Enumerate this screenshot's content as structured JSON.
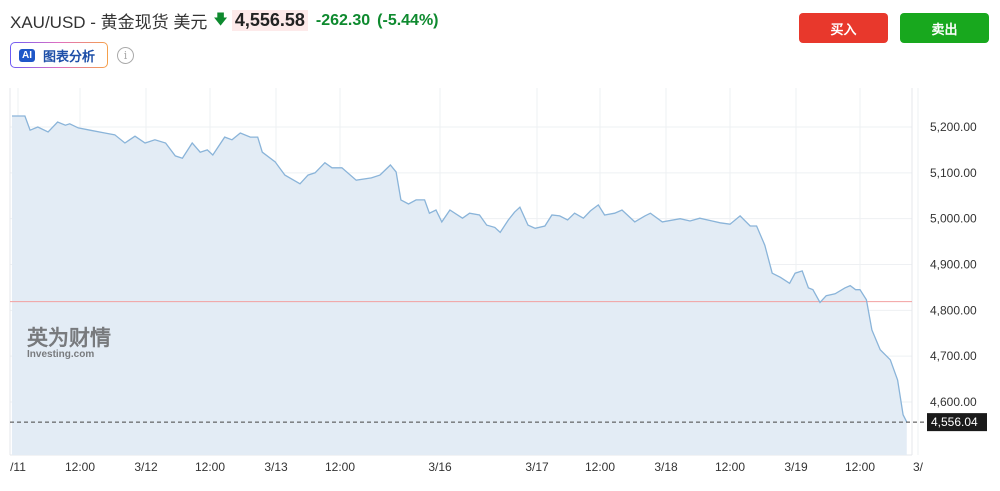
{
  "header": {
    "title": "XAU/USD - 黄金现货 美元",
    "direction_icon": "arrow-down-icon",
    "price": "4,556.58",
    "change": "-262.30",
    "change_pct": "(-5.44%)"
  },
  "ai_button": {
    "badge": "AI",
    "label": "图表分析"
  },
  "info_icon": "i",
  "buttons": {
    "buy": "买入",
    "sell": "卖出"
  },
  "colors": {
    "buy": "#e8382c",
    "sell": "#18a81e",
    "down": "#0e8a2f",
    "line": "#8ab4d9",
    "fill": "#e3ecf5",
    "prev_close": "#f2a0a0"
  },
  "watermark": {
    "cn": "英为财情",
    "en": "Investing.com"
  },
  "chart_data": {
    "type": "area",
    "ylim": [
      4520,
      5260
    ],
    "yticks": [
      {
        "v": 5200,
        "label": "5,200.00"
      },
      {
        "v": 5100,
        "label": "5,100.00"
      },
      {
        "v": 5000,
        "label": "5,000.00"
      },
      {
        "v": 4900,
        "label": "4,900.00"
      },
      {
        "v": 4800,
        "label": "4,800.00"
      },
      {
        "v": 4700,
        "label": "4,700.00"
      },
      {
        "v": 4600,
        "label": "4,600.00"
      }
    ],
    "xticks": [
      "/11",
      "12:00",
      "3/12",
      "12:00",
      "3/13",
      "12:00",
      "3/16",
      "3/17",
      "12:00",
      "3/18",
      "12:00",
      "3/19",
      "12:00",
      "3/"
    ],
    "reference_line": 4818.88,
    "current": {
      "value": 4556.04,
      "label": "4,556.04"
    },
    "points": [
      [
        "03-10 22:50",
        5224
      ],
      [
        "03-11 01:20",
        5224
      ],
      [
        "03-11 02:20",
        5193
      ],
      [
        "03-11 03:50",
        5200
      ],
      [
        "03-11 05:50",
        5189
      ],
      [
        "03-11 07:40",
        5211
      ],
      [
        "03-11 09:10",
        5204
      ],
      [
        "03-11 10:00",
        5207
      ],
      [
        "03-11 11:40",
        5198
      ],
      [
        "03-11 13:50",
        5193
      ],
      [
        "03-11 16:30",
        5187
      ],
      [
        "03-11 18:20",
        5183
      ],
      [
        "03-11 20:10",
        5165
      ],
      [
        "03-11 22:00",
        5180
      ],
      [
        "03-11 23:50",
        5165
      ],
      [
        "03-12 01:40",
        5172
      ],
      [
        "03-12 03:40",
        5165
      ],
      [
        "03-12 05:30",
        5137
      ],
      [
        "03-12 06:50",
        5132
      ],
      [
        "03-12 08:40",
        5165
      ],
      [
        "03-12 10:10",
        5145
      ],
      [
        "03-12 11:30",
        5150
      ],
      [
        "03-12 12:30",
        5139
      ],
      [
        "03-12 14:40",
        5178
      ],
      [
        "03-12 16:00",
        5172
      ],
      [
        "03-12 17:30",
        5187
      ],
      [
        "03-12 19:20",
        5178
      ],
      [
        "03-12 20:40",
        5178
      ],
      [
        "03-12 21:30",
        5145
      ],
      [
        "03-12 23:50",
        5124
      ],
      [
        "03-13 01:40",
        5095
      ],
      [
        "03-13 04:30",
        5076
      ],
      [
        "03-13 06:00",
        5095
      ],
      [
        "03-13 07:20",
        5100
      ],
      [
        "03-13 09:10",
        5122
      ],
      [
        "03-13 10:30",
        5111
      ],
      [
        "03-13 12:20",
        5111
      ],
      [
        "03-13 14:50",
        5084
      ],
      [
        "03-13 17:30",
        5089
      ],
      [
        "03-13 19:00",
        5095
      ],
      [
        "03-13 20:50",
        5117
      ],
      [
        "03-13 21:50",
        5102
      ],
      [
        "03-13 22:40",
        5041
      ],
      [
        "03-14 00:00",
        5032
      ],
      [
        "03-14 01:20",
        5041
      ],
      [
        "03-14 02:50",
        5041
      ],
      [
        "03-14 03:40",
        5012
      ],
      [
        "03-14 04:50",
        5019
      ],
      [
        "03-16 06:20",
        4993
      ],
      [
        "03-16 07:50",
        5019
      ],
      [
        "03-16 10:10",
        5001
      ],
      [
        "03-16 11:30",
        5012
      ],
      [
        "03-16 13:20",
        5008
      ],
      [
        "03-16 14:40",
        4986
      ],
      [
        "03-16 16:10",
        4981
      ],
      [
        "03-16 17:10",
        4970
      ],
      [
        "03-16 18:40",
        4997
      ],
      [
        "03-16 19:50",
        5014
      ],
      [
        "03-16 20:50",
        5025
      ],
      [
        "03-16 22:20",
        4986
      ],
      [
        "03-16 23:40",
        4979
      ],
      [
        "03-17 01:30",
        4984
      ],
      [
        "03-17 02:50",
        5008
      ],
      [
        "03-17 04:20",
        5006
      ],
      [
        "03-17 05:50",
        4997
      ],
      [
        "03-17 07:10",
        5012
      ],
      [
        "03-17 08:50",
        5001
      ],
      [
        "03-17 10:10",
        5017
      ],
      [
        "03-17 11:40",
        5030
      ],
      [
        "03-17 12:50",
        5008
      ],
      [
        "03-17 14:40",
        5012
      ],
      [
        "03-17 16:00",
        5019
      ],
      [
        "03-17 18:20",
        4993
      ],
      [
        "03-17 20:10",
        5006
      ],
      [
        "03-17 21:10",
        5012
      ],
      [
        "03-17 23:20",
        4993
      ],
      [
        "03-18 02:40",
        5000
      ],
      [
        "03-18 04:30",
        4995
      ],
      [
        "03-18 06:20",
        5001
      ],
      [
        "03-18 08:40",
        4995
      ],
      [
        "03-18 10:10",
        4991
      ],
      [
        "03-18 12:00",
        4988
      ],
      [
        "03-18 13:50",
        5006
      ],
      [
        "03-18 15:40",
        4984
      ],
      [
        "03-18 16:50",
        4984
      ],
      [
        "03-18 18:20",
        4942
      ],
      [
        "03-18 19:40",
        4881
      ],
      [
        "03-18 21:10",
        4872
      ],
      [
        "03-18 22:50",
        4859
      ],
      [
        "03-18 23:50",
        4881
      ],
      [
        "03-19 01:10",
        4886
      ],
      [
        "03-19 02:20",
        4849
      ],
      [
        "03-19 03:10",
        4845
      ],
      [
        "03-19 04:30",
        4817
      ],
      [
        "03-19 05:40",
        4832
      ],
      [
        "03-19 07:20",
        4836
      ],
      [
        "03-19 09:10",
        4849
      ],
      [
        "03-19 10:10",
        4854
      ],
      [
        "03-19 11:10",
        4845
      ],
      [
        "03-19 12:00",
        4845
      ],
      [
        "03-19 13:10",
        4823
      ],
      [
        "03-19 14:10",
        4757
      ],
      [
        "03-19 15:40",
        4714
      ],
      [
        "03-19 17:30",
        4692
      ],
      [
        "03-19 18:50",
        4648
      ],
      [
        "03-19 19:50",
        4572
      ],
      [
        "03-19 20:30",
        4556
      ]
    ]
  }
}
